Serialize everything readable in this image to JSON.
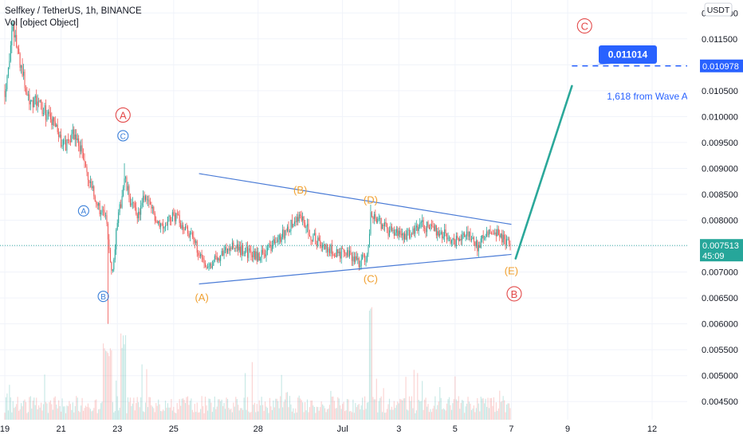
{
  "header": {
    "title": "Selfkey / TetherUS, 1h, BINANCE",
    "indicator": "Vol [object Object]"
  },
  "colors": {
    "up": "#26a69a",
    "down": "#ef5350",
    "trendline": "#4a7bd6",
    "projection": "#2ba89a",
    "wave_main": "#e34a4a",
    "wave_minor_orange": "#f0a030",
    "wave_sub_blue": "#3a7fd9",
    "target_blue": "#2962ff",
    "price_label_green": "#26a69a"
  },
  "chart_data": {
    "type": "candlestick",
    "symbol": "Selfkey / TetherUS",
    "interval": "1h",
    "exchange": "BINANCE",
    "currency_label": "USDT",
    "ylim": [
      0.00415,
      0.01225
    ],
    "y_ticks": [
      "0.012000",
      "0.011500",
      "0.011000",
      "0.010500",
      "0.010000",
      "0.009500",
      "0.009000",
      "0.008500",
      "0.008000",
      "0.007500",
      "0.007000",
      "0.006500",
      "0.006000",
      "0.005500",
      "0.005000",
      "0.004500"
    ],
    "x_tick_labels": [
      "19",
      "21",
      "23",
      "25",
      "28",
      "Jul",
      "3",
      "5",
      "7",
      "9",
      "12"
    ],
    "x_tick_days": [
      19,
      21,
      23,
      25,
      28,
      31,
      33,
      35,
      37,
      39,
      42
    ],
    "price_path": [
      [
        19.0,
        0.0105
      ],
      [
        19.3,
        0.0117
      ],
      [
        19.8,
        0.0104
      ],
      [
        20.3,
        0.0102
      ],
      [
        20.8,
        0.0098
      ],
      [
        21.1,
        0.0094
      ],
      [
        21.4,
        0.0097
      ],
      [
        21.7,
        0.0094
      ],
      [
        22.0,
        0.0087
      ],
      [
        22.3,
        0.0083
      ],
      [
        22.6,
        0.008
      ],
      [
        22.8,
        0.007
      ],
      [
        23.0,
        0.0079
      ],
      [
        23.25,
        0.0088
      ],
      [
        23.5,
        0.0083
      ],
      [
        23.75,
        0.0081
      ],
      [
        24.0,
        0.0085
      ],
      [
        24.3,
        0.0081
      ],
      [
        24.6,
        0.0079
      ],
      [
        25.0,
        0.0081
      ],
      [
        25.5,
        0.0078
      ],
      [
        25.9,
        0.0074
      ],
      [
        26.2,
        0.0071
      ],
      [
        26.6,
        0.0073
      ],
      [
        27.0,
        0.0075
      ],
      [
        27.5,
        0.0074
      ],
      [
        28.0,
        0.0073
      ],
      [
        28.5,
        0.0075
      ],
      [
        29.0,
        0.0078
      ],
      [
        29.5,
        0.0081
      ],
      [
        29.9,
        0.0077
      ],
      [
        30.3,
        0.0075
      ],
      [
        30.7,
        0.0074
      ],
      [
        31.3,
        0.0073
      ],
      [
        31.6,
        0.0072
      ],
      [
        31.9,
        0.0073
      ],
      [
        32.0,
        0.0082
      ],
      [
        32.2,
        0.008
      ],
      [
        32.6,
        0.0078
      ],
      [
        33.2,
        0.0077
      ],
      [
        33.8,
        0.0079
      ],
      [
        34.4,
        0.0078
      ],
      [
        35.0,
        0.0076
      ],
      [
        35.4,
        0.0078
      ],
      [
        35.8,
        0.0075
      ],
      [
        36.2,
        0.0078
      ],
      [
        36.6,
        0.0077
      ],
      [
        36.95,
        0.007513
      ]
    ],
    "extremes": {
      "low": [
        22.65,
        0.006
      ],
      "high_start": [
        19.4,
        0.0119
      ],
      "wave_c_spike": [
        23.25,
        0.0091
      ],
      "d_spike": [
        32.0,
        0.0083
      ]
    },
    "current_price": "0.007513",
    "countdown": "45:09",
    "triangle": {
      "upper": [
        [
          25.9,
          0.0089
        ],
        [
          37.0,
          0.00792
        ]
      ],
      "lower": [
        [
          25.9,
          0.00677
        ],
        [
          37.0,
          0.00734
        ]
      ]
    },
    "projection_line": [
      [
        37.15,
        0.00726
      ],
      [
        39.15,
        0.01059
      ]
    ],
    "target": {
      "label": "0.011014",
      "level": 0.010978,
      "level_label": "0.010978",
      "note": "1,618 from Wave A",
      "line_from_day": 39.15
    },
    "wave_labels": [
      {
        "text": "A",
        "style": "circle",
        "color": "wave_main",
        "day": 23.2,
        "price": 0.01003
      },
      {
        "text": "B",
        "style": "circle",
        "color": "wave_main",
        "day": 37.1,
        "price": 0.00658
      },
      {
        "text": "C",
        "style": "circle",
        "color": "wave_main",
        "day": 39.6,
        "price": 0.01175
      },
      {
        "text": "C",
        "style": "circle-small",
        "color": "wave_sub_blue",
        "day": 23.2,
        "price": 0.00963
      },
      {
        "text": "A",
        "style": "circle-small",
        "color": "wave_sub_blue",
        "day": 21.8,
        "price": 0.00818
      },
      {
        "text": "B",
        "style": "circle-small",
        "color": "wave_sub_blue",
        "day": 22.5,
        "price": 0.00653
      },
      {
        "text": "(A)",
        "style": "plain",
        "color": "wave_minor_orange",
        "day": 26.0,
        "price": 0.00652
      },
      {
        "text": "(B)",
        "style": "plain",
        "color": "wave_minor_orange",
        "day": 29.5,
        "price": 0.00859
      },
      {
        "text": "(C)",
        "style": "plain",
        "color": "wave_minor_orange",
        "day": 32.0,
        "price": 0.00688
      },
      {
        "text": "(D)",
        "style": "plain",
        "color": "wave_minor_orange",
        "day": 32.0,
        "price": 0.0084
      },
      {
        "text": "(E)",
        "style": "plain",
        "color": "wave_minor_orange",
        "day": 37.0,
        "price": 0.00703
      }
    ]
  }
}
